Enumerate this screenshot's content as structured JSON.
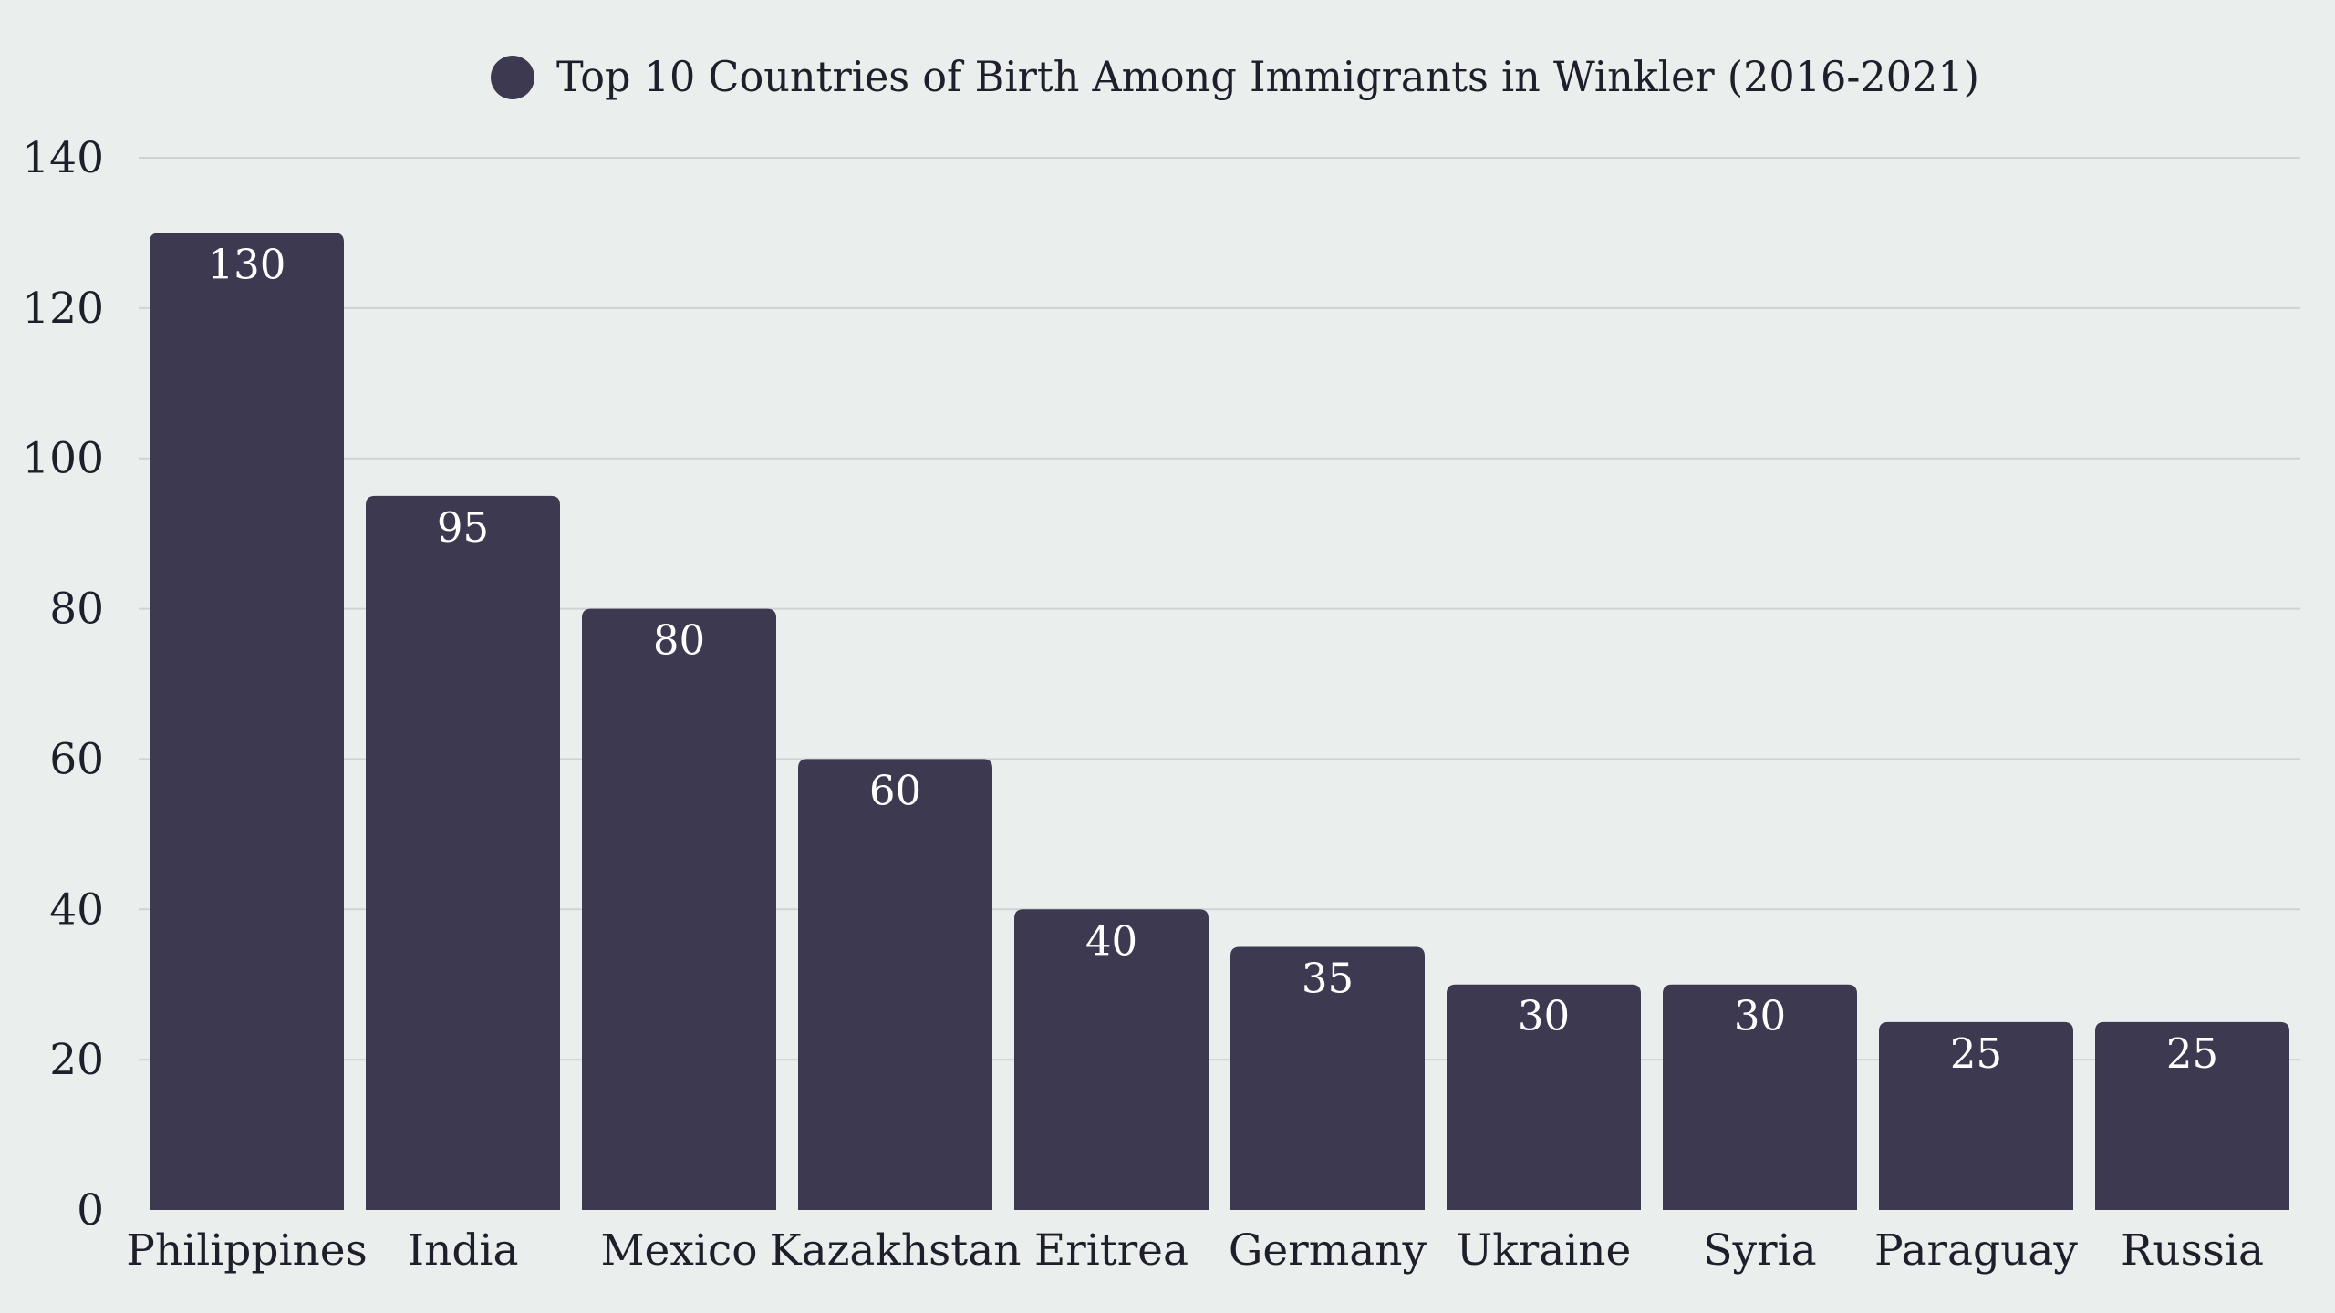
{
  "chart_data": {
    "type": "bar",
    "legend": {
      "label": "Top 10 Countries of Birth Among Immigrants in Winkler (2016-2021)",
      "placement": "top-center"
    },
    "categories": [
      "Philippines",
      "India",
      "Mexico",
      "Kazakhstan",
      "Eritrea",
      "Germany",
      "Ukraine",
      "Syria",
      "Paraguay",
      "Russia"
    ],
    "series": [
      {
        "name": "Top 10 Countries of Birth Among Immigrants in Winkler (2016-2021)",
        "values": [
          130,
          95,
          80,
          60,
          40,
          35,
          30,
          30,
          25,
          25
        ]
      }
    ],
    "ylim": [
      0,
      140
    ],
    "yticks": [
      0,
      20,
      40,
      60,
      80,
      100,
      120,
      140
    ],
    "ytick_labels": [
      "0",
      "20",
      "40",
      "60",
      "80",
      "100",
      "120",
      "140"
    ],
    "grid": true,
    "data_labels": true,
    "title": "",
    "xlabel": "",
    "ylabel": ""
  },
  "colors": {
    "background": "#eaeeed",
    "bar": "#3d3950",
    "grid": "#cfd4d3",
    "text": "#1f1f2b",
    "value_label": "#ffffff"
  }
}
